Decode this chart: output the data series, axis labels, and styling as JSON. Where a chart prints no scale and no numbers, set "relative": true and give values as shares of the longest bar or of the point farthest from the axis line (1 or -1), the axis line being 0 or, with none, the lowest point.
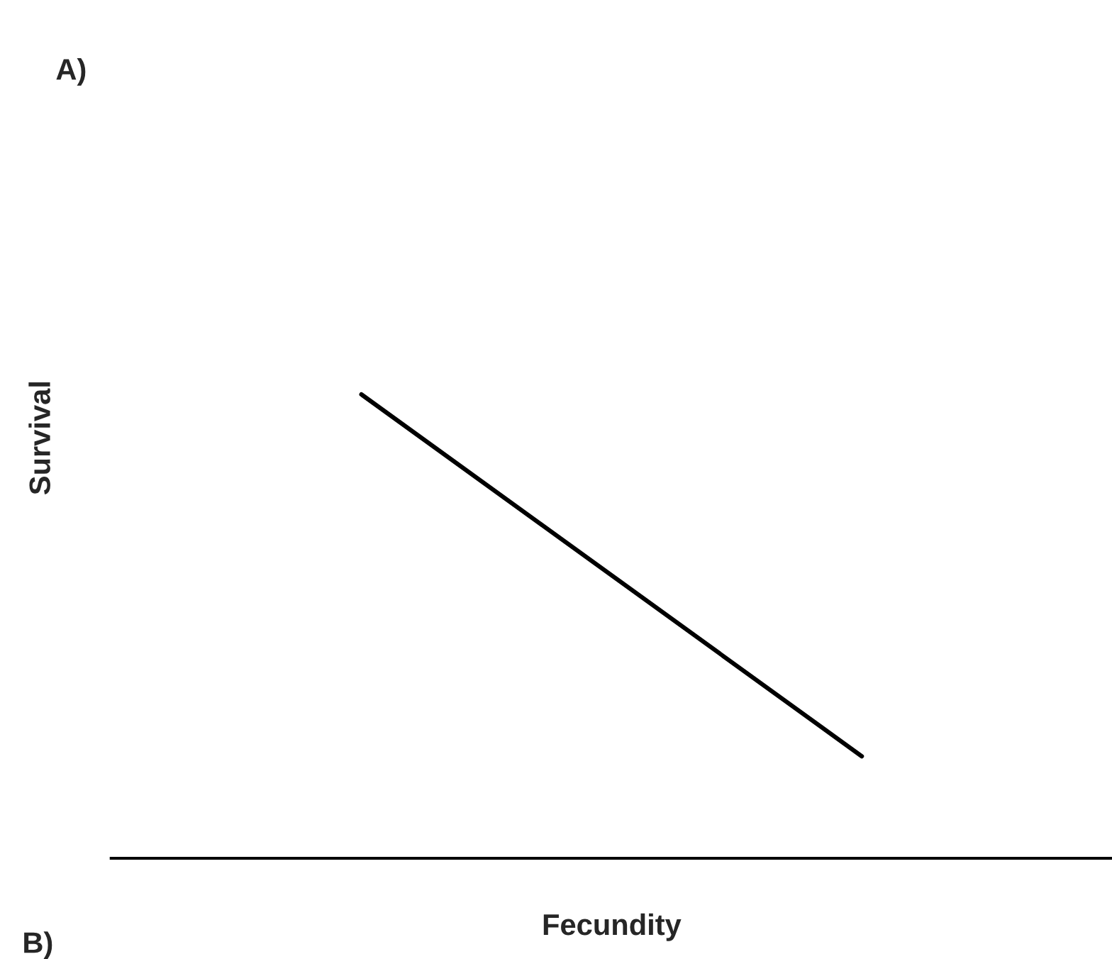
{
  "chart_data": {
    "type": "line",
    "relative": true,
    "xlabel": "Fecundity",
    "ylabel": "Survival",
    "categories": [
      null,
      null
    ],
    "series": [
      {
        "color": "#000000",
        "values": [
          1,
          0.22
        ]
      }
    ],
    "annotations": [
      "A)",
      "B)"
    ],
    "legend": false,
    "marker": "none",
    "line_style": "solid"
  }
}
